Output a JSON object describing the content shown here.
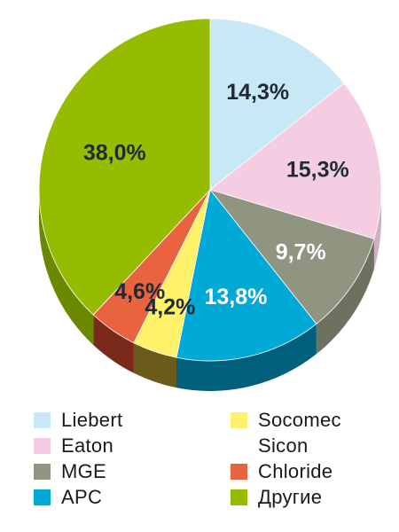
{
  "chart_data": {
    "type": "pie",
    "title": "",
    "legend_position": "bottom",
    "slices": [
      {
        "label": "Liebert",
        "value": 14.3,
        "display": "14,3%",
        "color": "#c9e8f6",
        "side": "#a9c6d4",
        "text_color": "#1f2a33"
      },
      {
        "label": "Eaton",
        "value": 15.3,
        "display": "15,3%",
        "color": "#f5cde2",
        "side": "#d3adc1",
        "text_color": "#1f2a33"
      },
      {
        "label": "MGE",
        "value": 9.7,
        "display": "9,7%",
        "color": "#8f9580",
        "side": "#6d7260",
        "text_color": "#ffffff"
      },
      {
        "label": "APC",
        "value": 13.8,
        "display": "13,8%",
        "color": "#00a9d6",
        "side": "#005f7c",
        "text_color": "#ffffff"
      },
      {
        "label": "Socomec",
        "value": 4.2,
        "display": "4,2%",
        "color": "#fff16a",
        "side": "#6a5a1c",
        "text_color": "#1f2a33"
      },
      {
        "label": "Sicon",
        "value": 0,
        "display": "",
        "color": "#7a6a3a",
        "side": "#4d3f1d",
        "text_color": "#1f2a33"
      },
      {
        "label": "Chloride",
        "value": 4.6,
        "display": "4,6%",
        "color": "#e8633e",
        "side": "#7a2a1a",
        "text_color": "#1f2a33"
      },
      {
        "label": "Другие",
        "value": 38.0,
        "display": "38,0%",
        "color": "#95bc00",
        "side": "#6a8800",
        "text_color": "#1f2a33"
      }
    ]
  },
  "legend": {
    "items": [
      {
        "label": "Liebert",
        "color": "#c9e8f6"
      },
      {
        "label": "Eaton",
        "color": "#f5cde2"
      },
      {
        "label": "MGE",
        "color": "#8f9580"
      },
      {
        "label": "APC",
        "color": "#00a9d6"
      },
      {
        "label": "Socomec",
        "color": "#fff16a"
      },
      {
        "label": "Sicon",
        "color": ""
      },
      {
        "label": "Chloride",
        "color": "#e8633e"
      },
      {
        "label": "Другие",
        "color": "#95bc00"
      }
    ]
  }
}
